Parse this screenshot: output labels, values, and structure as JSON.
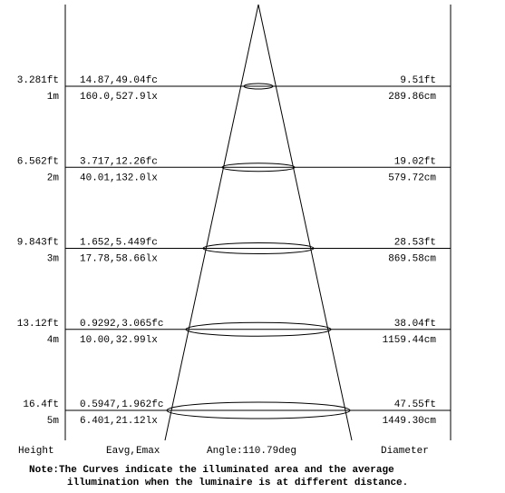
{
  "rows": [
    {
      "height_ft": "3.281ft",
      "height_m": "1m",
      "illum_fc": "14.87,49.04fc",
      "illum_lx": "160.0,527.9lx",
      "diameter_ft": "9.51ft",
      "diameter_cm": "289.86cm"
    },
    {
      "height_ft": "6.562ft",
      "height_m": "2m",
      "illum_fc": "3.717,12.26fc",
      "illum_lx": "40.01,132.0lx",
      "diameter_ft": "19.02ft",
      "diameter_cm": "579.72cm"
    },
    {
      "height_ft": "9.843ft",
      "height_m": "3m",
      "illum_fc": "1.652,5.449fc",
      "illum_lx": "17.78,58.66lx",
      "diameter_ft": "28.53ft",
      "diameter_cm": "869.58cm"
    },
    {
      "height_ft": "13.12ft",
      "height_m": "4m",
      "illum_fc": "0.9292,3.065fc",
      "illum_lx": "10.00,32.99lx",
      "diameter_ft": "38.04ft",
      "diameter_cm": "1159.44cm"
    },
    {
      "height_ft": "16.4ft",
      "height_m": "5m",
      "illum_fc": "0.5947,1.962fc",
      "illum_lx": "6.401,21.12lx",
      "diameter_ft": "47.55ft",
      "diameter_cm": "1449.30cm"
    }
  ],
  "footer": {
    "height": "Height",
    "illum": "Eavg,Emax",
    "angle": "Angle:110.79deg",
    "diameter": "Diameter"
  },
  "note": {
    "line1": "Note:The Curves indicate the illuminated area and the average",
    "line2": "illumination when the luminaire is at different distance."
  }
}
